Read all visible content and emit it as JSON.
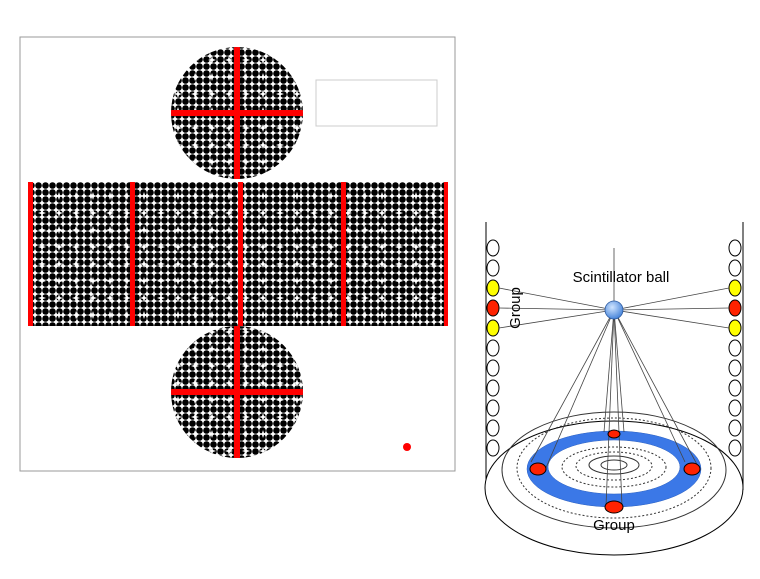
{
  "left_panel": {
    "description_label": "",
    "pmt_color": "#000000",
    "marker_color": "#ff0000",
    "highlight_color": "#ffffff"
  },
  "right_panel": {
    "ball_label": "Scintillator ball",
    "side_group_label": "Group",
    "bottom_group_label": "Group",
    "ring_color": "#3b78e7",
    "selected_pmt_color": "#ff2200",
    "neighbor_pmt_color": "#ffff00"
  }
}
